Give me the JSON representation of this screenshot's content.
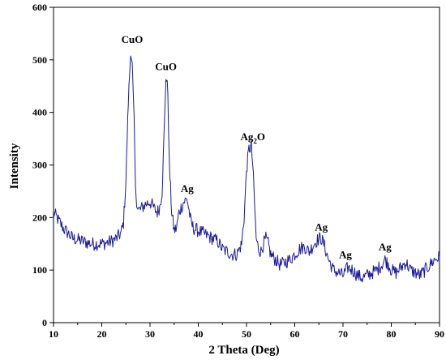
{
  "chart_data": {
    "type": "line",
    "xlabel": "2 Theta (Deg)",
    "ylabel": "Intensity",
    "xlim": [
      10,
      90
    ],
    "ylim": [
      0,
      600
    ],
    "x_ticks": [
      "10",
      "20",
      "30",
      "40",
      "50",
      "60",
      "70",
      "80",
      "90"
    ],
    "y_ticks": [
      "0",
      "100",
      "200",
      "300",
      "400",
      "500",
      "600"
    ],
    "grid": false,
    "line_color": "#1a1aa0",
    "series": [
      {
        "x": [
          10,
          11,
          12,
          13,
          14,
          15,
          16,
          17,
          18,
          19,
          20,
          21,
          22,
          23,
          24,
          24.5,
          25,
          25.5,
          26,
          26.3,
          26.7,
          27,
          27.5,
          28,
          29,
          30,
          31,
          31.5,
          32,
          32.5,
          33,
          33.3,
          33.7,
          34,
          34.5,
          35,
          35.5,
          36,
          37,
          37.7,
          38.5,
          39,
          40,
          41,
          42,
          43,
          44,
          45,
          46,
          47,
          48,
          49,
          49.5,
          50,
          50.5,
          51,
          51.3,
          51.7,
          52,
          52.5,
          53,
          53.5,
          54,
          54.5,
          55,
          56,
          57,
          58,
          59,
          60,
          61,
          62,
          63,
          64,
          65,
          65.5,
          66,
          67,
          68,
          69,
          70,
          71,
          72,
          73,
          74,
          75,
          76,
          77,
          78,
          78.7,
          79.5,
          80,
          81,
          82,
          83,
          84,
          85,
          86,
          87,
          88,
          89,
          90
        ],
        "y": [
          210,
          195,
          180,
          170,
          160,
          158,
          155,
          152,
          150,
          150,
          150,
          152,
          155,
          160,
          170,
          190,
          270,
          420,
          520,
          490,
          380,
          250,
          215,
          215,
          225,
          230,
          215,
          210,
          220,
          250,
          380,
          470,
          440,
          300,
          210,
          175,
          180,
          210,
          230,
          235,
          190,
          180,
          175,
          170,
          165,
          160,
          155,
          140,
          135,
          130,
          130,
          150,
          200,
          290,
          330,
          335,
          300,
          220,
          160,
          140,
          135,
          150,
          160,
          150,
          130,
          120,
          110,
          115,
          120,
          130,
          140,
          145,
          135,
          150,
          160,
          160,
          150,
          120,
          100,
          95,
          90,
          105,
          100,
          90,
          85,
          90,
          95,
          100,
          110,
          120,
          110,
          100,
          95,
          105,
          115,
          100,
          95,
          90,
          100,
          110,
          120,
          125
        ]
      }
    ],
    "annotations": [
      {
        "text": "CuO",
        "x": 26.3,
        "y": 520
      },
      {
        "text": "CuO",
        "x": 33.3,
        "y": 468
      },
      {
        "text": "Ag",
        "x": 37.7,
        "y": 236
      },
      {
        "text": "Ag",
        "sub": "2",
        "text_after": "O",
        "x": 51.3,
        "y": 335
      },
      {
        "text": "Ag",
        "x": 65.5,
        "y": 163
      },
      {
        "text": "Ag",
        "x": 70.5,
        "y": 110
      },
      {
        "text": "Ag",
        "x": 78.7,
        "y": 125
      }
    ]
  }
}
